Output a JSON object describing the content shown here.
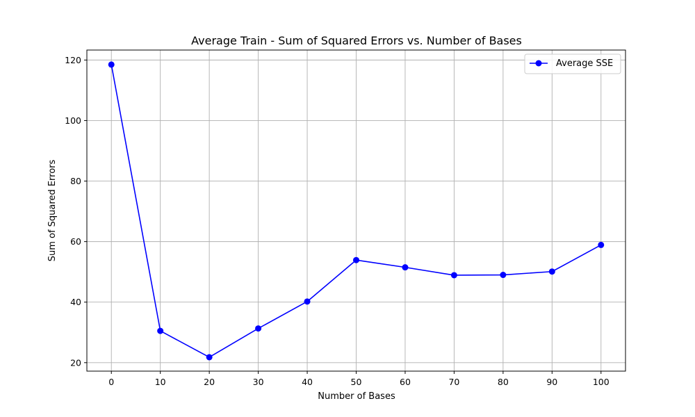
{
  "chart_data": {
    "type": "line",
    "title": "Average Train - Sum of Squared Errors vs. Number of Bases",
    "xlabel": "Number of Bases",
    "ylabel": "Sum of Squared Errors",
    "x": [
      0,
      10,
      20,
      30,
      40,
      50,
      60,
      70,
      80,
      90,
      100
    ],
    "xticks": [
      0,
      10,
      20,
      30,
      40,
      50,
      60,
      70,
      80,
      90,
      100
    ],
    "yticks": [
      20,
      40,
      60,
      80,
      100,
      120
    ],
    "xlim": [
      -5,
      105
    ],
    "ylim": [
      17.2,
      123.3
    ],
    "grid": true,
    "legend_position": "top-right",
    "series": [
      {
        "name": "Average SSE",
        "color": "#0000ff",
        "marker": "circle",
        "values": [
          118.5,
          30.5,
          21.8,
          31.3,
          40.2,
          53.9,
          51.5,
          48.9,
          49.0,
          50.1,
          58.9
        ]
      }
    ]
  }
}
